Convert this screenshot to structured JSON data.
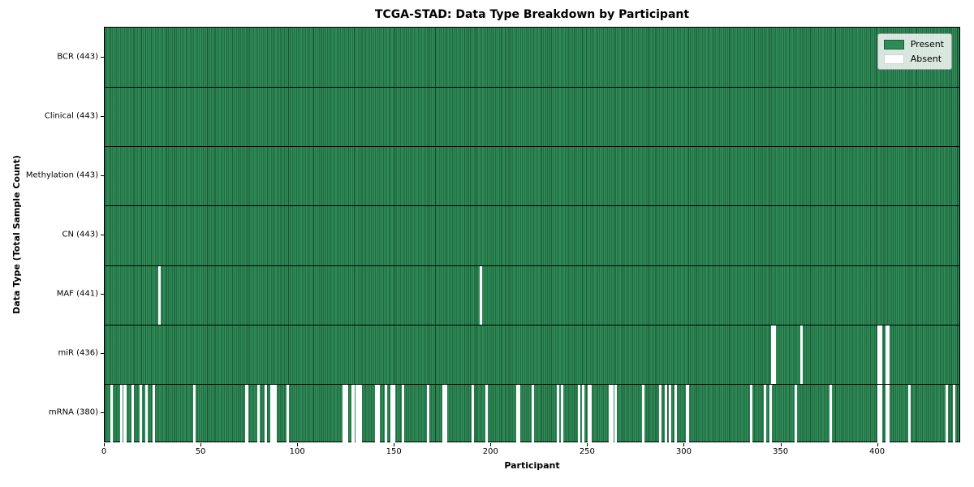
{
  "chart_data": {
    "type": "heatmap",
    "title": "TCGA-STAD: Data Type Breakdown by Participant",
    "xlabel": "Participant",
    "ylabel": "Data Type (Total Sample Count)",
    "x_ticks": [
      0,
      50,
      100,
      150,
      200,
      250,
      300,
      350,
      400
    ],
    "x_range": [
      0,
      443
    ],
    "n_participants": 443,
    "grid": false,
    "legend_position": "upper right",
    "legend": [
      {
        "label": "Present",
        "color": "#2e8b57"
      },
      {
        "label": "Absent",
        "color": "#ffffff"
      }
    ],
    "colors": {
      "present": "#2e8b57",
      "absent": "#ffffff",
      "cell_edge_dark": "#082616"
    },
    "rows": [
      {
        "name": "BCR",
        "label": "BCR (443)",
        "present_count": 443,
        "absent_participants": []
      },
      {
        "name": "Clinical",
        "label": "Clinical (443)",
        "present_count": 443,
        "absent_participants": []
      },
      {
        "name": "Methylation",
        "label": "Methylation (443)",
        "present_count": 443,
        "absent_participants": []
      },
      {
        "name": "CN",
        "label": "CN (443)",
        "present_count": 443,
        "absent_participants": []
      },
      {
        "name": "MAF",
        "label": "MAF (441)",
        "present_count": 441,
        "absent_participants": [
          28,
          194
        ]
      },
      {
        "name": "miR",
        "label": "miR (436)",
        "present_count": 436,
        "absent_participants": [
          345,
          346,
          360,
          400,
          401,
          404,
          405
        ]
      },
      {
        "name": "mRNA",
        "label": "mRNA (380)",
        "present_count": 380,
        "absent_participants": [
          3,
          8,
          10,
          14,
          18,
          21,
          25,
          46,
          73,
          79,
          83,
          86,
          87,
          88,
          94,
          123,
          124,
          125,
          128,
          130,
          131,
          132,
          140,
          141,
          145,
          148,
          149,
          154,
          167,
          175,
          176,
          190,
          197,
          213,
          214,
          221,
          234,
          236,
          245,
          247,
          250,
          251,
          261,
          262,
          264,
          278,
          287,
          290,
          292,
          295,
          301,
          334,
          341,
          344,
          357,
          375,
          400,
          401,
          404,
          405,
          416,
          435,
          439
        ]
      }
    ]
  }
}
